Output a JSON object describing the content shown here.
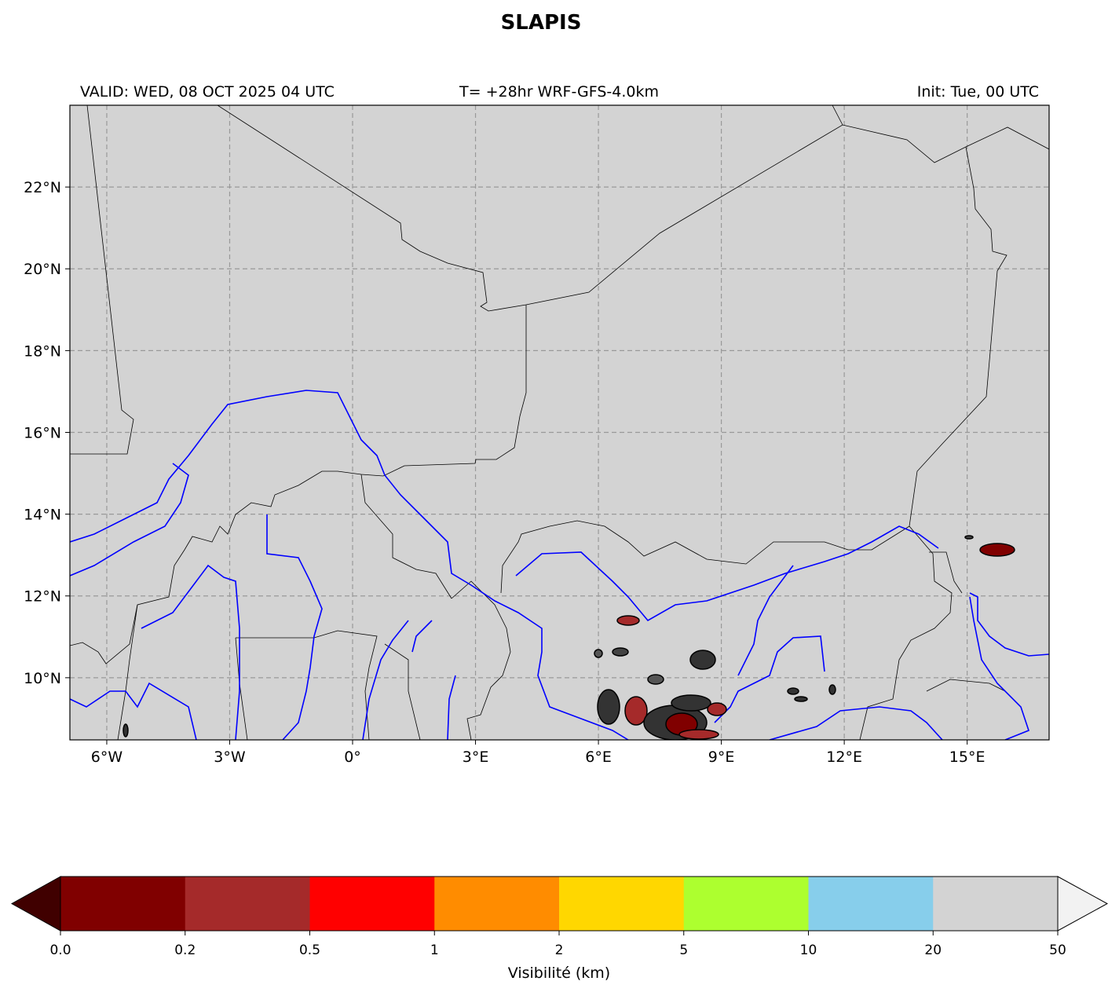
{
  "title": "SLAPIS",
  "header": {
    "valid": "VALID: WED, 08 OCT 2025 04 UTC",
    "run": "T= +28hr WRF-GFS-4.0km",
    "init": "Init: Tue, 00 UTC"
  },
  "map": {
    "lonlim": [
      -6.9,
      17.0
    ],
    "latlim": [
      8.48,
      24.0
    ],
    "grid": true,
    "lonticks": [
      {
        "value": -6,
        "label": "6°W"
      },
      {
        "value": -3,
        "label": "3°W"
      },
      {
        "value": 0,
        "label": "0°"
      },
      {
        "value": 3,
        "label": "3°E"
      },
      {
        "value": 6,
        "label": "6°E"
      },
      {
        "value": 9,
        "label": "9°E"
      },
      {
        "value": 12,
        "label": "12°E"
      },
      {
        "value": 15,
        "label": "15°E"
      }
    ],
    "latticks": [
      {
        "value": 10,
        "label": "10°N"
      },
      {
        "value": 12,
        "label": "12°N"
      },
      {
        "value": 14,
        "label": "14°N"
      },
      {
        "value": 16,
        "label": "16°N"
      },
      {
        "value": 18,
        "label": "18°N"
      },
      {
        "value": 20,
        "label": "20°N"
      },
      {
        "value": 22,
        "label": "22°N"
      }
    ]
  },
  "colorbar": {
    "label": "Visibilité (km)",
    "levels": [
      {
        "value": 0,
        "label": "0.0"
      },
      0.2,
      0.5,
      1,
      2,
      5,
      10,
      20,
      50
    ],
    "colors": [
      "#800000",
      "#a52a2a",
      "#ff0000",
      "#ff8c00",
      "#ffd700",
      "#adff2f",
      "#87ceeb",
      "#d3d3d3"
    ],
    "under_color": "#400000",
    "over_color": "#f2f2f2"
  }
}
